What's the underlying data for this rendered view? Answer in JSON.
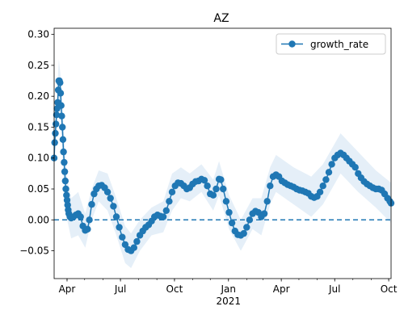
{
  "chart_data": {
    "type": "line",
    "title": "AZ",
    "xlabel": "",
    "ylabel": "",
    "legend": {
      "placement": "top-right",
      "entries": [
        "growth_rate"
      ]
    },
    "x_range": [
      "2020-03-10",
      "2021-10-05"
    ],
    "ylim": [
      -0.095,
      0.31
    ],
    "y_ticks": [
      -0.05,
      0.0,
      0.05,
      0.1,
      0.15,
      0.2,
      0.25,
      0.3
    ],
    "y_tick_labels": [
      "−0.05",
      "0.00",
      "0.05",
      "0.10",
      "0.15",
      "0.20",
      "0.25",
      "0.30"
    ],
    "x_ticks": [
      {
        "date": "2020-04-01",
        "label": "Apr",
        "sublabel": ""
      },
      {
        "date": "2020-07-01",
        "label": "Jul",
        "sublabel": ""
      },
      {
        "date": "2020-10-01",
        "label": "Oct",
        "sublabel": ""
      },
      {
        "date": "2021-01-01",
        "label": "Jan",
        "sublabel": "2021"
      },
      {
        "date": "2021-04-01",
        "label": "Apr",
        "sublabel": ""
      },
      {
        "date": "2021-07-01",
        "label": "Jul",
        "sublabel": ""
      },
      {
        "date": "2021-10-01",
        "label": "Oct",
        "sublabel": ""
      }
    ],
    "reference_line": {
      "y": 0.0,
      "style": "dashed"
    },
    "colors": {
      "series": "#1f77b4",
      "band": "#c6dbef"
    },
    "series": [
      {
        "name": "growth_rate",
        "points": [
          [
            "2020-03-10",
            0.1
          ],
          [
            "2020-03-11",
            0.125
          ],
          [
            "2020-03-12",
            0.14
          ],
          [
            "2020-03-13",
            0.155
          ],
          [
            "2020-03-14",
            0.17
          ],
          [
            "2020-03-15",
            0.18
          ],
          [
            "2020-03-16",
            0.19
          ],
          [
            "2020-03-17",
            0.21
          ],
          [
            "2020-03-18",
            0.225
          ],
          [
            "2020-03-19",
            0.225
          ],
          [
            "2020-03-20",
            0.222
          ],
          [
            "2020-03-21",
            0.205
          ],
          [
            "2020-03-22",
            0.185
          ],
          [
            "2020-03-23",
            0.168
          ],
          [
            "2020-03-24",
            0.15
          ],
          [
            "2020-03-25",
            0.13
          ],
          [
            "2020-03-26",
            0.11
          ],
          [
            "2020-03-27",
            0.093
          ],
          [
            "2020-03-28",
            0.078
          ],
          [
            "2020-03-29",
            0.063
          ],
          [
            "2020-03-30",
            0.05
          ],
          [
            "2020-03-31",
            0.04
          ],
          [
            "2020-04-01",
            0.032
          ],
          [
            "2020-04-02",
            0.024
          ],
          [
            "2020-04-03",
            0.016
          ],
          [
            "2020-04-04",
            0.01
          ],
          [
            "2020-04-06",
            0.005
          ],
          [
            "2020-04-08",
            0.003
          ],
          [
            "2020-04-12",
            0.005
          ],
          [
            "2020-04-16",
            0.008
          ],
          [
            "2020-04-20",
            0.01
          ],
          [
            "2020-04-24",
            0.005
          ],
          [
            "2020-04-28",
            -0.01
          ],
          [
            "2020-05-02",
            -0.017
          ],
          [
            "2020-05-06",
            -0.015
          ],
          [
            "2020-05-09",
            0.0
          ],
          [
            "2020-05-13",
            0.025
          ],
          [
            "2020-05-17",
            0.042
          ],
          [
            "2020-05-21",
            0.05
          ],
          [
            "2020-05-25",
            0.055
          ],
          [
            "2020-05-30",
            0.056
          ],
          [
            "2020-06-04",
            0.052
          ],
          [
            "2020-06-09",
            0.045
          ],
          [
            "2020-06-14",
            0.035
          ],
          [
            "2020-06-19",
            0.022
          ],
          [
            "2020-06-24",
            0.005
          ],
          [
            "2020-06-29",
            -0.012
          ],
          [
            "2020-07-04",
            -0.028
          ],
          [
            "2020-07-09",
            -0.04
          ],
          [
            "2020-07-14",
            -0.048
          ],
          [
            "2020-07-19",
            -0.05
          ],
          [
            "2020-07-24",
            -0.045
          ],
          [
            "2020-07-29",
            -0.035
          ],
          [
            "2020-08-03",
            -0.025
          ],
          [
            "2020-08-08",
            -0.018
          ],
          [
            "2020-08-13",
            -0.012
          ],
          [
            "2020-08-18",
            -0.008
          ],
          [
            "2020-08-23",
            -0.002
          ],
          [
            "2020-08-28",
            0.005
          ],
          [
            "2020-09-02",
            0.008
          ],
          [
            "2020-09-07",
            0.006
          ],
          [
            "2020-09-12",
            0.005
          ],
          [
            "2020-09-17",
            0.015
          ],
          [
            "2020-09-22",
            0.03
          ],
          [
            "2020-09-27",
            0.045
          ],
          [
            "2020-10-02",
            0.055
          ],
          [
            "2020-10-07",
            0.06
          ],
          [
            "2020-10-12",
            0.059
          ],
          [
            "2020-10-17",
            0.055
          ],
          [
            "2020-10-22",
            0.05
          ],
          [
            "2020-10-27",
            0.052
          ],
          [
            "2020-11-01",
            0.058
          ],
          [
            "2020-11-06",
            0.062
          ],
          [
            "2020-11-11",
            0.063
          ],
          [
            "2020-11-16",
            0.066
          ],
          [
            "2020-11-21",
            0.064
          ],
          [
            "2020-11-26",
            0.055
          ],
          [
            "2020-12-01",
            0.042
          ],
          [
            "2020-12-06",
            0.04
          ],
          [
            "2020-12-11",
            0.05
          ],
          [
            "2020-12-16",
            0.066
          ],
          [
            "2020-12-19",
            0.065
          ],
          [
            "2020-12-23",
            0.05
          ],
          [
            "2020-12-28",
            0.03
          ],
          [
            "2021-01-02",
            0.012
          ],
          [
            "2021-01-07",
            -0.005
          ],
          [
            "2021-01-12",
            -0.018
          ],
          [
            "2021-01-17",
            -0.024
          ],
          [
            "2021-01-22",
            -0.025
          ],
          [
            "2021-01-27",
            -0.022
          ],
          [
            "2021-02-01",
            -0.012
          ],
          [
            "2021-02-06",
            0.0
          ],
          [
            "2021-02-11",
            0.01
          ],
          [
            "2021-02-16",
            0.014
          ],
          [
            "2021-02-21",
            0.012
          ],
          [
            "2021-02-26",
            0.005
          ],
          [
            "2021-03-03",
            0.01
          ],
          [
            "2021-03-08",
            0.03
          ],
          [
            "2021-03-13",
            0.055
          ],
          [
            "2021-03-18",
            0.07
          ],
          [
            "2021-03-23",
            0.073
          ],
          [
            "2021-03-28",
            0.07
          ],
          [
            "2021-04-02",
            0.063
          ],
          [
            "2021-04-07",
            0.06
          ],
          [
            "2021-04-12",
            0.057
          ],
          [
            "2021-04-17",
            0.055
          ],
          [
            "2021-04-22",
            0.053
          ],
          [
            "2021-04-27",
            0.05
          ],
          [
            "2021-05-02",
            0.048
          ],
          [
            "2021-05-07",
            0.047
          ],
          [
            "2021-05-12",
            0.045
          ],
          [
            "2021-05-17",
            0.043
          ],
          [
            "2021-05-22",
            0.038
          ],
          [
            "2021-05-27",
            0.036
          ],
          [
            "2021-06-01",
            0.038
          ],
          [
            "2021-06-06",
            0.045
          ],
          [
            "2021-06-11",
            0.055
          ],
          [
            "2021-06-16",
            0.065
          ],
          [
            "2021-06-21",
            0.077
          ],
          [
            "2021-06-26",
            0.09
          ],
          [
            "2021-07-01",
            0.1
          ],
          [
            "2021-07-06",
            0.105
          ],
          [
            "2021-07-11",
            0.108
          ],
          [
            "2021-07-16",
            0.105
          ],
          [
            "2021-07-21",
            0.1
          ],
          [
            "2021-07-26",
            0.095
          ],
          [
            "2021-07-31",
            0.09
          ],
          [
            "2021-08-05",
            0.085
          ],
          [
            "2021-08-10",
            0.075
          ],
          [
            "2021-08-15",
            0.068
          ],
          [
            "2021-08-20",
            0.062
          ],
          [
            "2021-08-25",
            0.058
          ],
          [
            "2021-08-30",
            0.055
          ],
          [
            "2021-09-04",
            0.052
          ],
          [
            "2021-09-09",
            0.05
          ],
          [
            "2021-09-14",
            0.05
          ],
          [
            "2021-09-19",
            0.048
          ],
          [
            "2021-09-24",
            0.042
          ],
          [
            "2021-09-29",
            0.035
          ],
          [
            "2021-10-03",
            0.03
          ],
          [
            "2021-10-05",
            0.027
          ]
        ]
      }
    ],
    "band": {
      "description": "shaded uncertainty interval around growth_rate",
      "lower": [
        [
          "2020-03-10",
          0.085
        ],
        [
          "2020-03-18",
          0.19
        ],
        [
          "2020-03-22",
          0.145
        ],
        [
          "2020-03-26",
          0.07
        ],
        [
          "2020-03-31",
          0.005
        ],
        [
          "2020-04-08",
          -0.03
        ],
        [
          "2020-04-20",
          -0.025
        ],
        [
          "2020-05-02",
          -0.045
        ],
        [
          "2020-05-13",
          0.0
        ],
        [
          "2020-05-25",
          0.03
        ],
        [
          "2020-06-09",
          0.015
        ],
        [
          "2020-06-24",
          -0.025
        ],
        [
          "2020-07-09",
          -0.07
        ],
        [
          "2020-07-19",
          -0.078
        ],
        [
          "2020-08-03",
          -0.05
        ],
        [
          "2020-08-23",
          -0.025
        ],
        [
          "2020-09-12",
          -0.02
        ],
        [
          "2020-09-27",
          0.015
        ],
        [
          "2020-10-12",
          0.035
        ],
        [
          "2020-10-27",
          0.03
        ],
        [
          "2020-11-16",
          0.045
        ],
        [
          "2020-12-06",
          0.015
        ],
        [
          "2020-12-16",
          0.04
        ],
        [
          "2021-01-02",
          -0.015
        ],
        [
          "2021-01-22",
          -0.05
        ],
        [
          "2021-02-11",
          -0.015
        ],
        [
          "2021-02-26",
          -0.025
        ],
        [
          "2021-03-13",
          0.025
        ],
        [
          "2021-03-23",
          0.045
        ],
        [
          "2021-04-22",
          0.025
        ],
        [
          "2021-05-22",
          0.005
        ],
        [
          "2021-06-11",
          0.025
        ],
        [
          "2021-07-11",
          0.075
        ],
        [
          "2021-08-10",
          0.045
        ],
        [
          "2021-09-09",
          0.02
        ],
        [
          "2021-10-05",
          -0.005
        ]
      ],
      "upper": [
        [
          "2020-03-10",
          0.115
        ],
        [
          "2020-03-18",
          0.26
        ],
        [
          "2020-03-22",
          0.225
        ],
        [
          "2020-03-26",
          0.15
        ],
        [
          "2020-03-31",
          0.075
        ],
        [
          "2020-04-08",
          0.035
        ],
        [
          "2020-04-20",
          0.045
        ],
        [
          "2020-05-02",
          0.01
        ],
        [
          "2020-05-13",
          0.05
        ],
        [
          "2020-05-25",
          0.08
        ],
        [
          "2020-06-09",
          0.075
        ],
        [
          "2020-06-24",
          0.035
        ],
        [
          "2020-07-09",
          -0.01
        ],
        [
          "2020-07-19",
          -0.022
        ],
        [
          "2020-08-03",
          0.0
        ],
        [
          "2020-08-23",
          0.02
        ],
        [
          "2020-09-12",
          0.03
        ],
        [
          "2020-09-27",
          0.075
        ],
        [
          "2020-10-12",
          0.085
        ],
        [
          "2020-10-27",
          0.075
        ],
        [
          "2020-11-16",
          0.09
        ],
        [
          "2020-12-06",
          0.065
        ],
        [
          "2020-12-16",
          0.095
        ],
        [
          "2021-01-02",
          0.04
        ],
        [
          "2021-01-22",
          0.0
        ],
        [
          "2021-02-11",
          0.035
        ],
        [
          "2021-02-26",
          0.035
        ],
        [
          "2021-03-13",
          0.085
        ],
        [
          "2021-03-23",
          0.105
        ],
        [
          "2021-04-22",
          0.085
        ],
        [
          "2021-05-22",
          0.07
        ],
        [
          "2021-06-11",
          0.09
        ],
        [
          "2021-07-11",
          0.14
        ],
        [
          "2021-08-10",
          0.11
        ],
        [
          "2021-09-09",
          0.08
        ],
        [
          "2021-10-05",
          0.06
        ]
      ]
    }
  }
}
